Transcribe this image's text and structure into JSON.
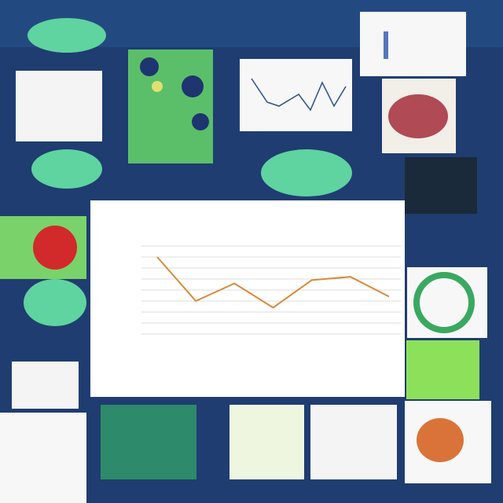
{
  "chart_data": {
    "type": "line",
    "values": [
      7,
      3,
      4.6,
      2.4,
      4.9,
      5.2,
      3.4
    ],
    "color": "#d98a3a",
    "ylim": [
      0,
      8
    ],
    "yticks": [
      0,
      1,
      2,
      3,
      4,
      5,
      6,
      7,
      8
    ],
    "grid": true
  }
}
